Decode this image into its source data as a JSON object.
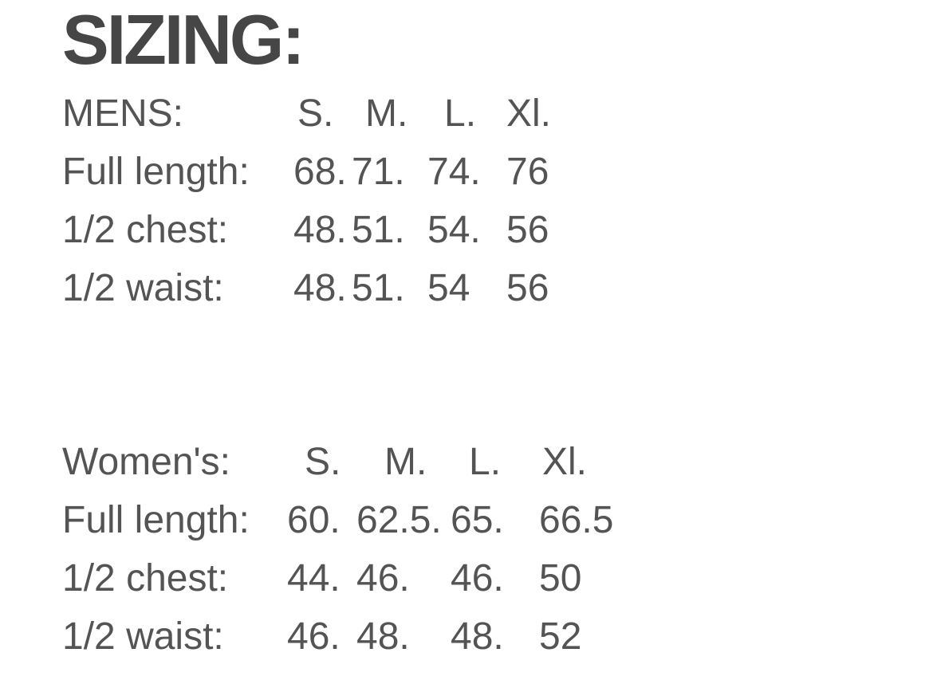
{
  "page": {
    "background_color": "#ffffff",
    "body_text_color": "#545454",
    "heading_text_color": "#464646"
  },
  "heading": "SIZING:",
  "mens": {
    "label": "MENS:",
    "sizes": [
      "S.",
      "M.",
      "L.",
      "Xl."
    ],
    "rows": [
      {
        "label": "Full length:",
        "values": [
          "68.",
          "71.",
          "74.",
          "76"
        ]
      },
      {
        "label": "1/2 chest:",
        "values": [
          "48.",
          "51.",
          "54.",
          "56"
        ]
      },
      {
        "label": "1/2 waist:",
        "values": [
          "48.",
          "51.",
          "54",
          "56"
        ]
      }
    ]
  },
  "womens": {
    "label": "Women's:",
    "sizes": [
      "S.",
      "M.",
      "L.",
      "Xl."
    ],
    "rows": [
      {
        "label": "Full length:",
        "values": [
          "60.",
          "62.5.",
          "65.",
          "66.5"
        ]
      },
      {
        "label": "1/2 chest:",
        "values": [
          "44.",
          "46.",
          "46.",
          "50"
        ]
      },
      {
        "label": "1/2 waist:",
        "values": [
          "46.",
          "48.",
          "48.",
          "52"
        ]
      }
    ]
  }
}
